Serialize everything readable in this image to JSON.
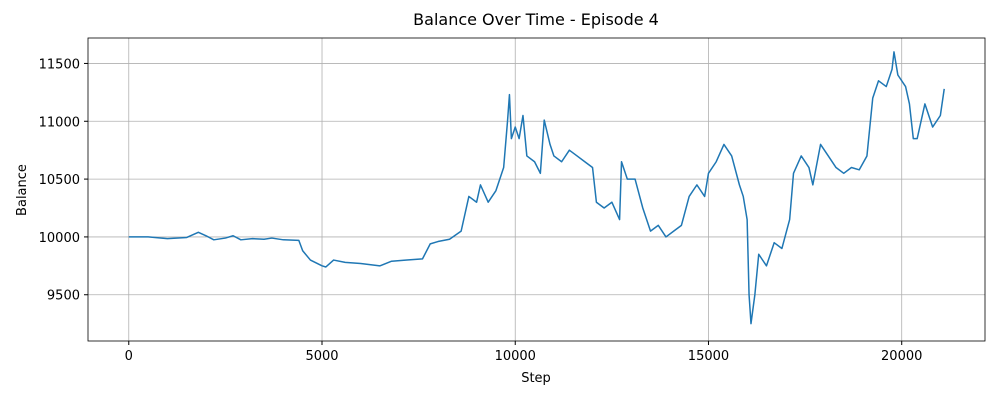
{
  "chart_data": {
    "type": "line",
    "title": "Balance Over Time - Episode 4",
    "x_label": "Step",
    "y_label": "Balance",
    "color": "#1f77b4",
    "grid": true,
    "xlim": [
      -1055,
      22155
    ],
    "ylim": [
      9100,
      11720
    ],
    "xticks": [
      0,
      5000,
      10000,
      15000,
      20000
    ],
    "yticks": [
      9500,
      10000,
      10500,
      11000,
      11500
    ],
    "x": [
      0,
      500,
      1000,
      1500,
      1800,
      2000,
      2200,
      2500,
      2700,
      2900,
      3200,
      3500,
      3700,
      4000,
      4400,
      4500,
      4700,
      5000,
      5100,
      5300,
      5600,
      6000,
      6500,
      6800,
      7200,
      7600,
      7800,
      8000,
      8300,
      8600,
      8800,
      9000,
      9100,
      9300,
      9500,
      9700,
      9800,
      9850,
      9900,
      10000,
      10100,
      10200,
      10300,
      10500,
      10650,
      10750,
      10900,
      11000,
      11200,
      11400,
      11600,
      11800,
      12000,
      12100,
      12300,
      12500,
      12700,
      12750,
      12900,
      13100,
      13300,
      13500,
      13700,
      13900,
      14100,
      14300,
      14500,
      14700,
      14900,
      15000,
      15200,
      15400,
      15600,
      15800,
      15900,
      16000,
      16050,
      16100,
      16200,
      16300,
      16500,
      16700,
      16900,
      17100,
      17200,
      17400,
      17600,
      17700,
      17900,
      18100,
      18300,
      18500,
      18700,
      18900,
      19100,
      19250,
      19400,
      19600,
      19750,
      19800,
      19900,
      20100,
      20200,
      20300,
      20400,
      20600,
      20800,
      21000,
      21100
    ],
    "values": [
      10000,
      10000,
      9985,
      9995,
      10040,
      10010,
      9975,
      9990,
      10010,
      9975,
      9985,
      9980,
      9990,
      9975,
      9970,
      9880,
      9800,
      9750,
      9740,
      9800,
      9780,
      9770,
      9750,
      9790,
      9800,
      9810,
      9940,
      9960,
      9980,
      10050,
      10350,
      10300,
      10450,
      10300,
      10400,
      10600,
      11000,
      11230,
      10850,
      10950,
      10850,
      11050,
      10700,
      10650,
      10550,
      11010,
      10800,
      10700,
      10650,
      10750,
      10700,
      10650,
      10600,
      10300,
      10250,
      10300,
      10150,
      10650,
      10500,
      10500,
      10250,
      10050,
      10100,
      10000,
      10050,
      10100,
      10350,
      10450,
      10350,
      10550,
      10650,
      10800,
      10700,
      10450,
      10350,
      10150,
      9500,
      9250,
      9500,
      9850,
      9750,
      9950,
      9900,
      10150,
      10550,
      10700,
      10600,
      10450,
      10800,
      10700,
      10600,
      10550,
      10600,
      10580,
      10700,
      11200,
      11350,
      11300,
      11450,
      11600,
      11400,
      11300,
      11150,
      10850,
      10850,
      11150,
      10950,
      11050,
      11280
    ]
  }
}
